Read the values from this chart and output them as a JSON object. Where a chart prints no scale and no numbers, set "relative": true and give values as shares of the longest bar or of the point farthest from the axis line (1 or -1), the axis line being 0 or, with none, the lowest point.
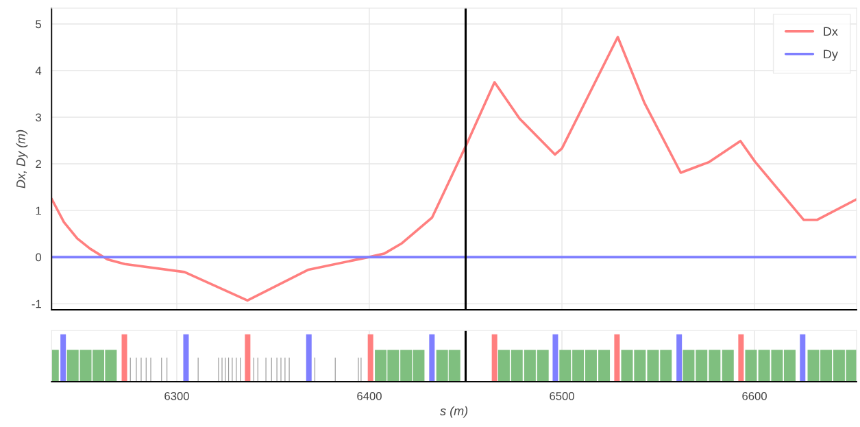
{
  "chart_data": [
    {
      "type": "line",
      "ylabel": "Dx, Dy (m)",
      "xlim": [
        6235,
        6653
      ],
      "ylim": [
        -1.13,
        5.34
      ],
      "xticks": [
        6300,
        6400,
        6500,
        6600
      ],
      "yticks": [
        -1,
        0,
        1,
        2,
        3,
        4,
        5
      ],
      "tick_labels": "y",
      "grid": true,
      "legend": "top right",
      "series": [
        {
          "name": "Dx",
          "color": "#ff7f7f",
          "x": [
            6235,
            6241.4,
            6248.3,
            6255,
            6264,
            6273,
            6304,
            6336.7,
            6368.4,
            6399.8,
            6408,
            6417,
            6432.6,
            6450.3,
            6465,
            6478,
            6496.4,
            6500,
            6529,
            6542.8,
            6561.7,
            6576.5,
            6592.7,
            6600.4,
            6625.5,
            6632.6,
            6653
          ],
          "values": [
            1.25,
            0.75,
            0.4,
            0.18,
            -0.05,
            -0.15,
            -0.32,
            -0.93,
            -0.27,
            0,
            0.08,
            0.3,
            0.85,
            2.4,
            3.75,
            2.97,
            2.2,
            2.33,
            4.72,
            3.31,
            1.81,
            2.04,
            2.49,
            2.04,
            0.8,
            0.8,
            1.24
          ]
        },
        {
          "name": "Dy",
          "color": "#7f7fff",
          "x": [
            6235,
            6653
          ],
          "values": [
            0,
            0
          ]
        }
      ],
      "ref_lines": [
        {
          "axis": "x",
          "value": 6450,
          "color": "#000000"
        }
      ]
    },
    {
      "type": "bar",
      "relative": true,
      "xlabel": "s (m)",
      "xlim": [
        6235,
        6653
      ],
      "xticks": [
        6300,
        6400,
        6500,
        6600
      ],
      "tick_labels": "x",
      "grid": "x",
      "series": [
        {
          "color": "#7fbf7f",
          "x": [
            6235.7,
            6246,
            6252.7,
            6259.3,
            6265.8,
            6405.9,
            6412.4,
            6419.1,
            6425.6,
            6437.8,
            6444.2,
            6469.9,
            6476.6,
            6483.4,
            6490.1,
            6501.7,
            6508.4,
            6515.1,
            6521.9,
            6533.8,
            6540.5,
            6547.3,
            6554,
            6565.8,
            6572.5,
            6579.3,
            6586.2,
            6598.2,
            6605,
            6611.7,
            6618.3,
            6630.6,
            6637.2,
            6643.9,
            6650.5
          ],
          "values": [
            0.67,
            0.67,
            0.67,
            0.67,
            0.67,
            0.67,
            0.67,
            0.67,
            0.67,
            0.67,
            0.67,
            0.67,
            0.67,
            0.67,
            0.67,
            0.67,
            0.67,
            0.67,
            0.67,
            0.67,
            0.67,
            0.67,
            0.67,
            0.67,
            0.67,
            0.67,
            0.67,
            0.67,
            0.67,
            0.67,
            0.67,
            0.67,
            0.67,
            0.67,
            0.67
          ]
        },
        {
          "color": "#9a9a9a",
          "x": [
            6275.9,
            6279,
            6281.5,
            6284.1,
            6286.5,
            6292.1,
            6294.9,
            6311.1,
            6321.7,
            6323.5,
            6325.2,
            6326.9,
            6328.8,
            6330.9,
            6333,
            6340,
            6342.1,
            6346.3,
            6349.2,
            6352,
            6354.1,
            6356.2,
            6358.4,
            6371.7,
            6382.3,
            6394.3,
            6395.7
          ],
          "values": [
            0.51,
            0.51,
            0.51,
            0.51,
            0.51,
            0.51,
            0.51,
            0.51,
            0.51,
            0.51,
            0.51,
            0.51,
            0.51,
            0.51,
            0.51,
            0.51,
            0.51,
            0.51,
            0.51,
            0.51,
            0.51,
            0.51,
            0.51,
            0.51,
            0.51,
            0.51,
            0.51
          ]
        },
        {
          "color": "#ff7f7f",
          "x": [
            6272.8,
            6336.8,
            6400.6,
            6465,
            6528.6,
            6593
          ],
          "values": [
            1,
            1,
            1,
            1,
            1,
            1
          ]
        },
        {
          "color": "#7f7fff",
          "x": [
            6241,
            6304.8,
            6368.6,
            6432.5,
            6496.6,
            6560.9,
            6625
          ],
          "values": [
            1,
            1,
            1,
            1,
            1,
            1,
            1
          ]
        }
      ],
      "ref_lines": [
        {
          "axis": "x",
          "value": 6450,
          "color": "#000000"
        }
      ]
    }
  ]
}
